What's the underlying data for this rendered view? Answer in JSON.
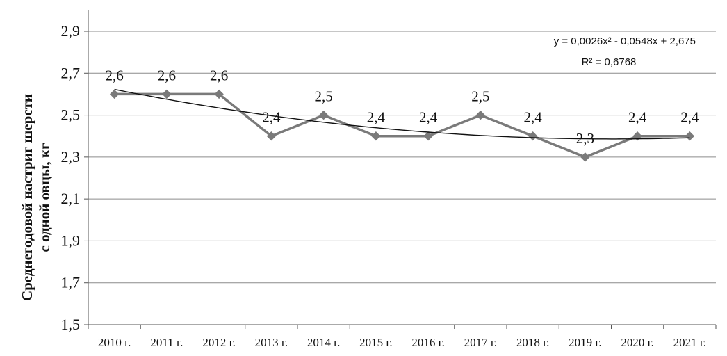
{
  "chart_data": {
    "type": "line",
    "categories": [
      "2010 г.",
      "2011 г.",
      "2012 г.",
      "2013 г.",
      "2014 г.",
      "2015 г.",
      "2016 г.",
      "2017 г.",
      "2018 г.",
      "2019 г.",
      "2020 г.",
      "2021 г."
    ],
    "series": [
      {
        "values": [
          2.6,
          2.6,
          2.6,
          2.4,
          2.5,
          2.4,
          2.4,
          2.5,
          2.4,
          2.3,
          2.4,
          2.4
        ],
        "data_labels": [
          "2,6",
          "2,6",
          "2,6",
          "2,4",
          "2,5",
          "2,4",
          "2,4",
          "2,5",
          "2,4",
          "2,3",
          "2,4",
          "2,4"
        ],
        "color": "#7a7a7a",
        "marker": "diamond"
      }
    ],
    "trendline": {
      "type": "polynomial",
      "order": 2,
      "coefficients": [
        0.0026,
        -0.0548,
        2.675
      ],
      "equation_text": "y = 0,0026x² - 0,0548x + 2,675",
      "r2_text": "R² = 0,6768",
      "color": "#111111"
    },
    "ylabel_lines": [
      "Среднегодовой настриг шерсти",
      "с одной овцы, кг"
    ],
    "ylim": [
      1.5,
      2.9
    ],
    "ytick_values": [
      1.5,
      1.7,
      1.9,
      2.1,
      2.3,
      2.5,
      2.7,
      2.9
    ],
    "ytick_labels": [
      "1,5",
      "1,7",
      "1,9",
      "2,1",
      "2,3",
      "2,5",
      "2,7",
      "2,9"
    ],
    "grid": true,
    "grid_color": "#8c8c8c",
    "axis_color": "#555555"
  }
}
